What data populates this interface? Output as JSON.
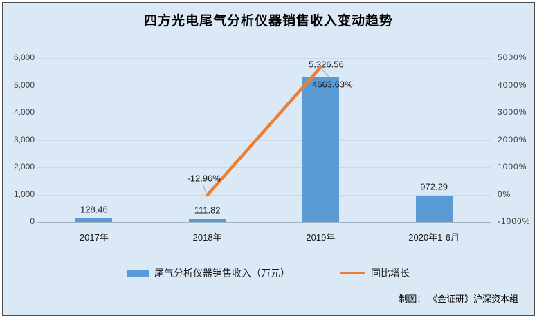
{
  "title": "四方光电尾气分析仪器销售收入变动趋势",
  "credit": "制图： 《金证研》沪深资本组",
  "colors": {
    "background": "#dbe8f5",
    "frame_border": "#4d4d4d",
    "bar": "#5b9bd5",
    "line": "#ed7d31",
    "gridline": "#c9d9ea",
    "axis_line": "#a3b3c2",
    "tick_text": "#404040",
    "leader_line": "#a6a6a6"
  },
  "legend": {
    "items": [
      {
        "type": "bar",
        "label": "尾气分析仪器销售收入（万元）",
        "color": "#5b9bd5"
      },
      {
        "type": "line",
        "label": "同比增长",
        "color": "#ed7d31"
      }
    ]
  },
  "chart_data": {
    "type": "bar",
    "combo": "bar+line",
    "title": "四方光电尾气分析仪器销售收入变动趋势",
    "categories": [
      "2017年",
      "2018年",
      "2019年",
      "2020年1-6月"
    ],
    "series": [
      {
        "name": "尾气分析仪器销售收入（万元）",
        "type": "bar",
        "axis": "left",
        "values": [
          128.46,
          111.82,
          5326.56,
          972.29
        ],
        "labels": [
          "128.46",
          "111.82",
          "5,326.56",
          "972.29"
        ],
        "color": "#5b9bd5"
      },
      {
        "name": "同比增长",
        "type": "line",
        "axis": "right",
        "values": [
          null,
          -12.96,
          4663.63,
          null
        ],
        "labels": [
          null,
          "-12.96%",
          "4663.63%",
          null
        ],
        "color": "#ed7d31"
      }
    ],
    "left_axis": {
      "min": 0,
      "max": 6000,
      "tick_step": 1000,
      "ticks": [
        "0",
        "1,000",
        "2,000",
        "3,000",
        "4,000",
        "5,000",
        "6,000"
      ]
    },
    "right_axis": {
      "min": -1000,
      "max": 5000,
      "tick_step": 1000,
      "ticks": [
        "-1000%",
        "0%",
        "1000%",
        "2000%",
        "3000%",
        "4000%",
        "5000%"
      ]
    },
    "grid": true,
    "legend_position": "bottom"
  }
}
